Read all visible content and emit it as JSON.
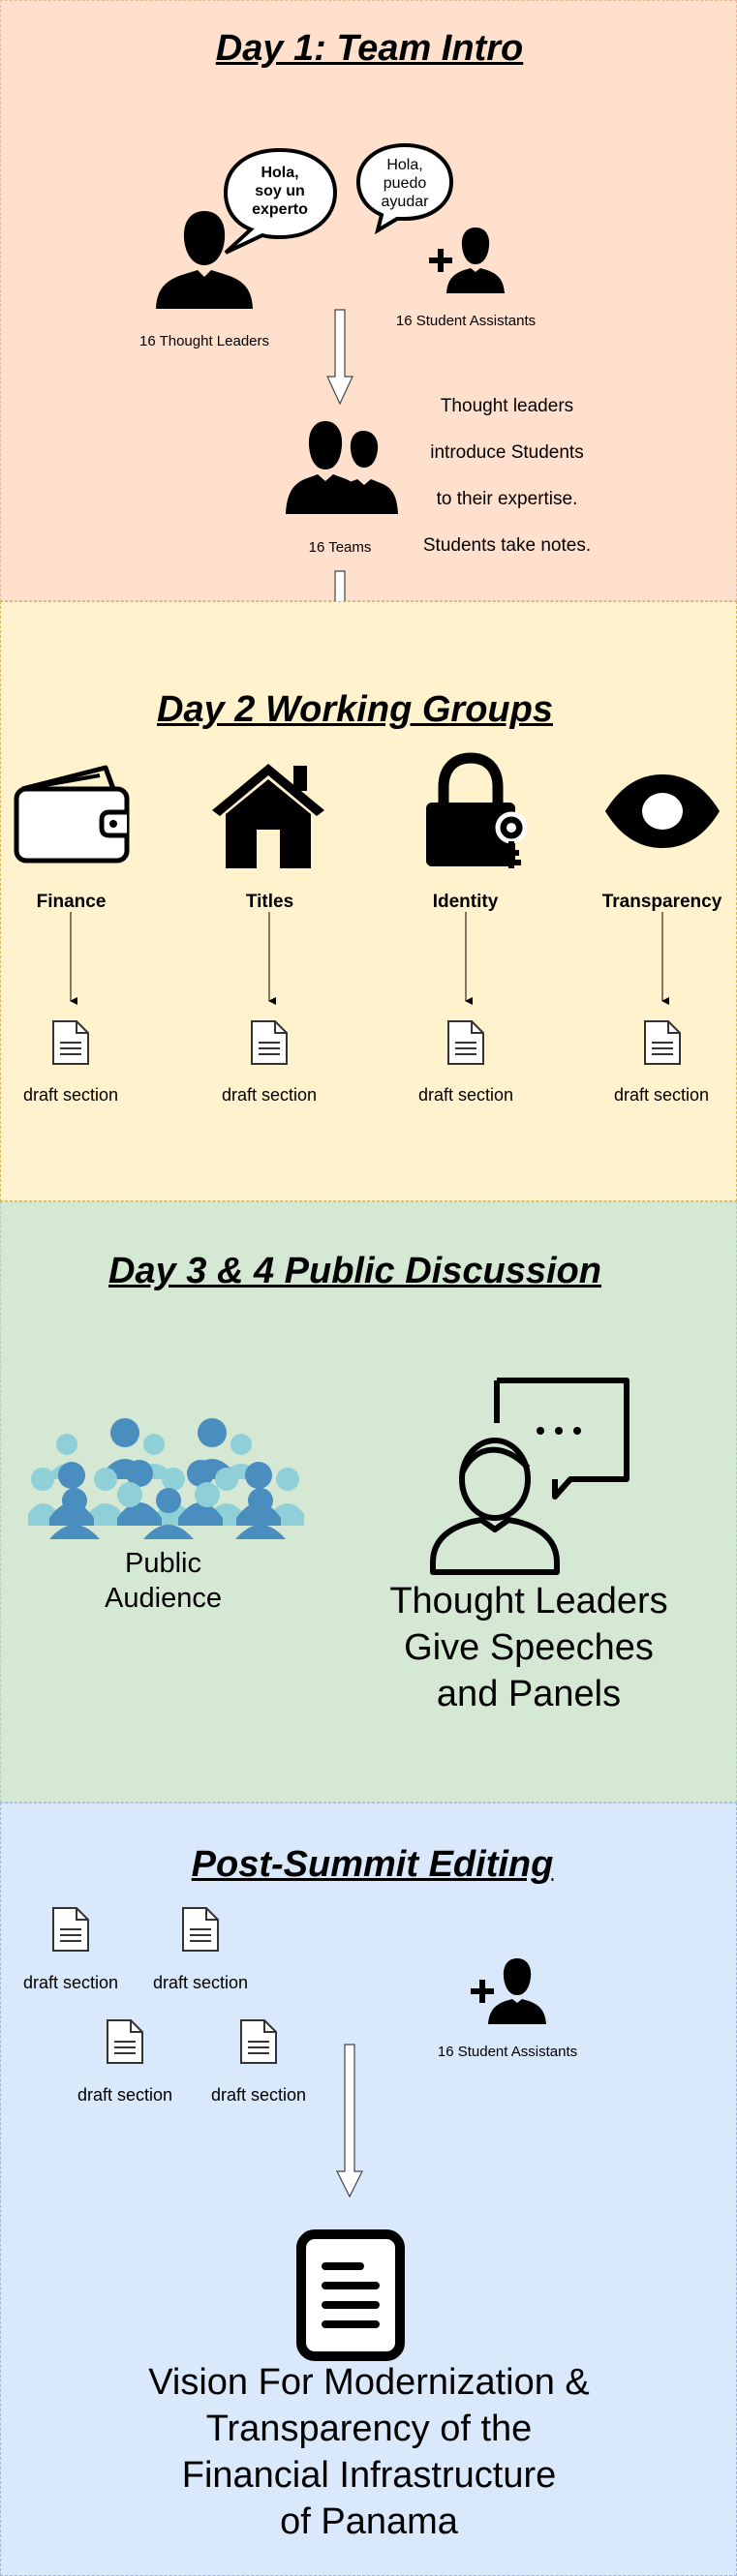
{
  "day1": {
    "title": "Day 1: Team Intro",
    "bubble_leader": [
      "Hola,",
      "soy un",
      "experto"
    ],
    "bubble_assistant": [
      "Hola,",
      "puedo",
      "ayudar"
    ],
    "thought_leaders_label": "16 Thought Leaders",
    "student_assistants_label": "16 Student Assistants",
    "teams_label": "16 Teams",
    "notes": [
      "Thought leaders",
      "introduce Students",
      "to their expertise.",
      "Students take notes."
    ]
  },
  "day2": {
    "title": "Day 2 Working Groups",
    "groups": [
      {
        "label": "Finance",
        "icon": "wallet-icon",
        "draft": "draft section"
      },
      {
        "label": "Titles",
        "icon": "house-icon",
        "draft": "draft section"
      },
      {
        "label": "Identity",
        "icon": "lock-key-icon",
        "draft": "draft section"
      },
      {
        "label": "Transparency",
        "icon": "eye-icon",
        "draft": "draft section"
      }
    ]
  },
  "day3": {
    "title": "Day 3 & 4 Public Discussion",
    "audience_label": [
      "Public",
      "Audience"
    ],
    "speaker_label": [
      "Thought Leaders",
      "Give Speeches",
      "and Panels"
    ],
    "speech_bubble_text": "..."
  },
  "post": {
    "title": "Post-Summit Editing",
    "drafts": [
      "draft section",
      "draft section",
      "draft section",
      "draft section"
    ],
    "student_assistants_label": "16 Student Assistants",
    "vision_lines": [
      "Vision For Modernization &",
      "Transparency of the",
      "Financial Infrastructure",
      "of Panama"
    ]
  },
  "colors": {
    "day1_bg": "#ffe0cc",
    "day2_bg": "#fff2cc",
    "day3_bg": "#d5e8d4",
    "post_bg": "#dae8fc",
    "audience_dark": "#4a8dbf",
    "audience_light": "#8fd0d8"
  }
}
